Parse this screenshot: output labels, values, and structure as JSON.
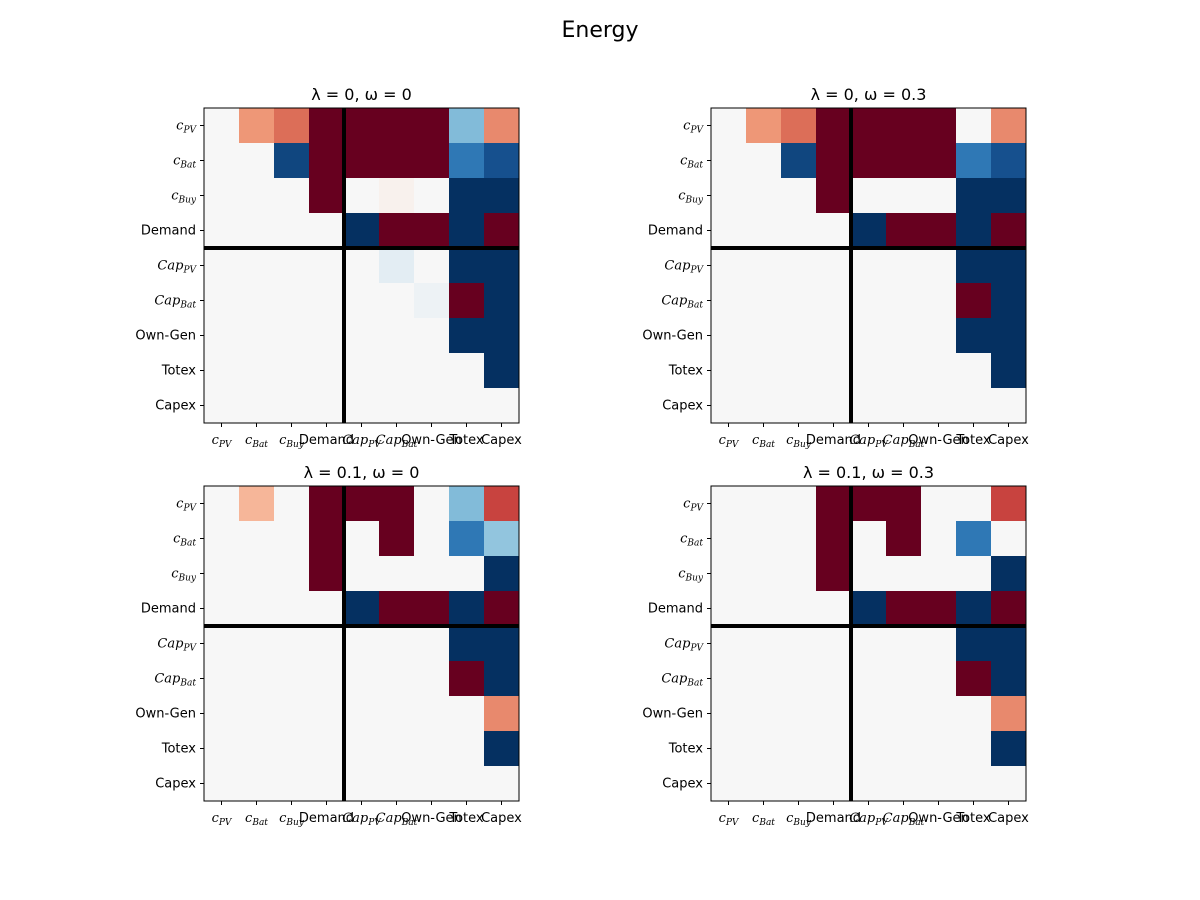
{
  "figure_title": "Energy",
  "chart_data": [
    {
      "type": "heatmap",
      "title": "λ = 0, ω = 0",
      "labels": [
        {
          "base": "c",
          "sub": "PV",
          "italic": true
        },
        {
          "base": "c",
          "sub": "Bat",
          "italic": true
        },
        {
          "base": "c",
          "sub": "Buy",
          "italic": true
        },
        {
          "base": "Demand",
          "sub": "",
          "italic": false
        },
        {
          "base": "Cap",
          "sub": "PV",
          "italic": true
        },
        {
          "base": "Cap",
          "sub": "Bat",
          "italic": true
        },
        {
          "base": "Own-Gen",
          "sub": "",
          "italic": false
        },
        {
          "base": "Totex",
          "sub": "",
          "italic": false
        },
        {
          "base": "Capex",
          "sub": "",
          "italic": false
        }
      ],
      "value_range": [
        -1,
        1
      ],
      "colormap": "RdBu",
      "divider_after_index": 3,
      "values": [
        [
          0,
          0.3,
          0.45,
          1,
          1,
          1,
          1,
          -0.3,
          0.35
        ],
        [
          0,
          0,
          -0.9,
          1,
          1,
          1,
          1,
          -0.65,
          -0.85
        ],
        [
          0,
          0,
          0,
          1,
          0,
          0.02,
          0,
          -1,
          -1
        ],
        [
          0,
          0,
          0,
          0,
          -1,
          1,
          1,
          -1,
          1
        ],
        [
          0,
          0,
          0,
          0,
          0,
          -0.04,
          0,
          -1,
          -1
        ],
        [
          0,
          0,
          0,
          0,
          0,
          0,
          -0.02,
          1,
          -1
        ],
        [
          0,
          0,
          0,
          0,
          0,
          0,
          0,
          -1,
          -1
        ],
        [
          0,
          0,
          0,
          0,
          0,
          0,
          0,
          0,
          -1
        ],
        [
          0,
          0,
          0,
          0,
          0,
          0,
          0,
          0,
          0
        ]
      ]
    },
    {
      "type": "heatmap",
      "title": "λ = 0, ω = 0.3",
      "labels": [
        {
          "base": "c",
          "sub": "PV",
          "italic": true
        },
        {
          "base": "c",
          "sub": "Bat",
          "italic": true
        },
        {
          "base": "c",
          "sub": "Buy",
          "italic": true
        },
        {
          "base": "Demand",
          "sub": "",
          "italic": false
        },
        {
          "base": "Cap",
          "sub": "PV",
          "italic": true
        },
        {
          "base": "Cap",
          "sub": "Bat",
          "italic": true
        },
        {
          "base": "Own-Gen",
          "sub": "",
          "italic": false
        },
        {
          "base": "Totex",
          "sub": "",
          "italic": false
        },
        {
          "base": "Capex",
          "sub": "",
          "italic": false
        }
      ],
      "value_range": [
        -1,
        1
      ],
      "colormap": "RdBu",
      "divider_after_index": 3,
      "values": [
        [
          0,
          0.3,
          0.45,
          1,
          1,
          1,
          1,
          0,
          0.35
        ],
        [
          0,
          0,
          -0.9,
          1,
          1,
          1,
          1,
          -0.65,
          -0.85
        ],
        [
          0,
          0,
          0,
          1,
          0,
          0,
          0,
          -1,
          -1
        ],
        [
          0,
          0,
          0,
          0,
          -1,
          1,
          1,
          -1,
          1
        ],
        [
          0,
          0,
          0,
          0,
          0,
          0,
          0,
          -1,
          -1
        ],
        [
          0,
          0,
          0,
          0,
          0,
          0,
          0,
          1,
          -1
        ],
        [
          0,
          0,
          0,
          0,
          0,
          0,
          0,
          -1,
          -1
        ],
        [
          0,
          0,
          0,
          0,
          0,
          0,
          0,
          0,
          -1
        ],
        [
          0,
          0,
          0,
          0,
          0,
          0,
          0,
          0,
          0
        ]
      ]
    },
    {
      "type": "heatmap",
      "title": "λ = 0.1, ω = 0",
      "labels": [
        {
          "base": "c",
          "sub": "PV",
          "italic": true
        },
        {
          "base": "c",
          "sub": "Bat",
          "italic": true
        },
        {
          "base": "c",
          "sub": "Buy",
          "italic": true
        },
        {
          "base": "Demand",
          "sub": "",
          "italic": false
        },
        {
          "base": "Cap",
          "sub": "PV",
          "italic": true
        },
        {
          "base": "Cap",
          "sub": "Bat",
          "italic": true
        },
        {
          "base": "Own-Gen",
          "sub": "",
          "italic": false
        },
        {
          "base": "Totex",
          "sub": "",
          "italic": false
        },
        {
          "base": "Capex",
          "sub": "",
          "italic": false
        }
      ],
      "value_range": [
        -1,
        1
      ],
      "colormap": "RdBu",
      "divider_after_index": 3,
      "values": [
        [
          0,
          0.2,
          0,
          1,
          1,
          1,
          0,
          -0.3,
          0.6
        ],
        [
          0,
          0,
          0,
          1,
          0,
          1,
          0,
          -0.65,
          -0.25
        ],
        [
          0,
          0,
          0,
          1,
          0,
          0,
          0,
          0,
          -1
        ],
        [
          0,
          0,
          0,
          0,
          -1,
          1,
          1,
          -1,
          1
        ],
        [
          0,
          0,
          0,
          0,
          0,
          0,
          0,
          -1,
          -1
        ],
        [
          0,
          0,
          0,
          0,
          0,
          0,
          0,
          1,
          -1
        ],
        [
          0,
          0,
          0,
          0,
          0,
          0,
          0,
          0,
          0.35
        ],
        [
          0,
          0,
          0,
          0,
          0,
          0,
          0,
          0,
          -1
        ],
        [
          0,
          0,
          0,
          0,
          0,
          0,
          0,
          0,
          0
        ]
      ]
    },
    {
      "type": "heatmap",
      "title": "λ = 0.1, ω = 0.3",
      "labels": [
        {
          "base": "c",
          "sub": "PV",
          "italic": true
        },
        {
          "base": "c",
          "sub": "Bat",
          "italic": true
        },
        {
          "base": "c",
          "sub": "Buy",
          "italic": true
        },
        {
          "base": "Demand",
          "sub": "",
          "italic": false
        },
        {
          "base": "Cap",
          "sub": "PV",
          "italic": true
        },
        {
          "base": "Cap",
          "sub": "Bat",
          "italic": true
        },
        {
          "base": "Own-Gen",
          "sub": "",
          "italic": false
        },
        {
          "base": "Totex",
          "sub": "",
          "italic": false
        },
        {
          "base": "Capex",
          "sub": "",
          "italic": false
        }
      ],
      "value_range": [
        -1,
        1
      ],
      "colormap": "RdBu",
      "divider_after_index": 3,
      "values": [
        [
          0,
          0,
          0,
          1,
          1,
          1,
          0,
          0,
          0.6
        ],
        [
          0,
          0,
          0,
          1,
          0,
          1,
          0,
          -0.65,
          0
        ],
        [
          0,
          0,
          0,
          1,
          0,
          0,
          0,
          0,
          -1
        ],
        [
          0,
          0,
          0,
          0,
          -1,
          1,
          1,
          -1,
          1
        ],
        [
          0,
          0,
          0,
          0,
          0,
          0,
          0,
          -1,
          -1
        ],
        [
          0,
          0,
          0,
          0,
          0,
          0,
          0,
          1,
          -1
        ],
        [
          0,
          0,
          0,
          0,
          0,
          0,
          0,
          0,
          0.35
        ],
        [
          0,
          0,
          0,
          0,
          0,
          0,
          0,
          0,
          -1
        ],
        [
          0,
          0,
          0,
          0,
          0,
          0,
          0,
          0,
          0
        ]
      ]
    }
  ]
}
